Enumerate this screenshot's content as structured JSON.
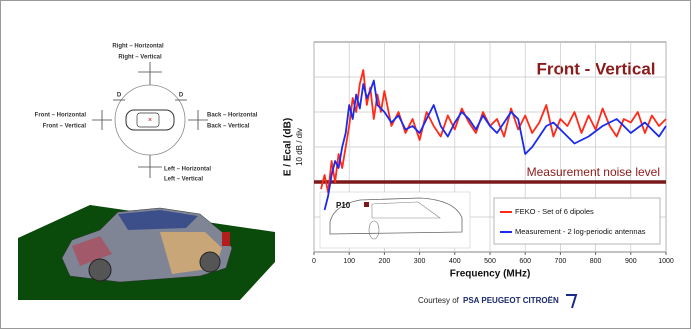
{
  "chart_data": {
    "type": "line",
    "title": "Front - Vertical",
    "xlabel": "Frequency (MHz)",
    "ylabel": "E / Ecal (dB)",
    "ysublabel": "10 dB / div",
    "xlim": [
      0,
      1000
    ],
    "xticks": [
      0,
      100,
      200,
      300,
      400,
      500,
      600,
      700,
      800,
      900,
      1000
    ],
    "ylim": [
      0,
      60
    ],
    "grid": true,
    "noise_level": 20,
    "noise_label": "Measurement noise level",
    "noise_color": "#7b1a1a",
    "inset_label": "P10",
    "series": [
      {
        "name": "FEKO - Set of 6 dipoles",
        "color": "#ff2a1a",
        "x": [
          20,
          30,
          40,
          50,
          60,
          70,
          80,
          90,
          100,
          110,
          120,
          130,
          140,
          150,
          160,
          170,
          180,
          190,
          200,
          220,
          240,
          260,
          280,
          300,
          320,
          340,
          360,
          380,
          400,
          420,
          440,
          460,
          480,
          500,
          520,
          540,
          560,
          580,
          600,
          620,
          640,
          660,
          680,
          700,
          720,
          740,
          760,
          780,
          800,
          820,
          840,
          860,
          880,
          900,
          920,
          940,
          960,
          980,
          1000
        ],
        "values": [
          18,
          22,
          17,
          26,
          20,
          28,
          24,
          30,
          36,
          44,
          40,
          48,
          52,
          42,
          47,
          38,
          45,
          40,
          46,
          36,
          40,
          34,
          38,
          32,
          40,
          36,
          33,
          39,
          35,
          41,
          37,
          34,
          40,
          36,
          38,
          33,
          41,
          35,
          39,
          34,
          37,
          42,
          33,
          38,
          36,
          40,
          34,
          39,
          35,
          41,
          36,
          33,
          38,
          37,
          40,
          34,
          39,
          36,
          38
        ]
      },
      {
        "name": "Measurement - 2 log-periodic antennas",
        "color": "#1a2aee",
        "x": [
          30,
          40,
          50,
          60,
          70,
          80,
          90,
          100,
          110,
          120,
          130,
          140,
          150,
          160,
          170,
          180,
          200,
          220,
          240,
          260,
          280,
          300,
          320,
          340,
          360,
          380,
          400,
          420,
          440,
          460,
          480,
          500,
          520,
          540,
          560,
          580,
          600,
          620,
          640,
          660,
          680,
          700,
          740,
          780,
          820,
          860,
          900,
          940,
          980,
          1000
        ],
        "values": [
          12,
          16,
          22,
          26,
          24,
          30,
          34,
          42,
          38,
          45,
          41,
          48,
          44,
          46,
          49,
          42,
          40,
          37,
          39,
          35,
          36,
          34,
          38,
          42,
          36,
          33,
          37,
          40,
          38,
          35,
          39,
          36,
          34,
          37,
          40,
          38,
          28,
          30,
          33,
          36,
          37,
          35,
          31,
          33,
          36,
          38,
          34,
          37,
          33,
          36
        ]
      }
    ]
  },
  "diagram": {
    "labels": [
      "Right – Horizontal",
      "Right – Vertical",
      "Front – Horizontal",
      "Front – Vertical",
      "Back – Horizontal",
      "Back – Vertical",
      "Left – Horizontal",
      "Left – Vertical"
    ],
    "distance": "D"
  },
  "credit": {
    "prefix": "Courtesy of",
    "company": "PSA PEUGEOT CITROËN"
  }
}
